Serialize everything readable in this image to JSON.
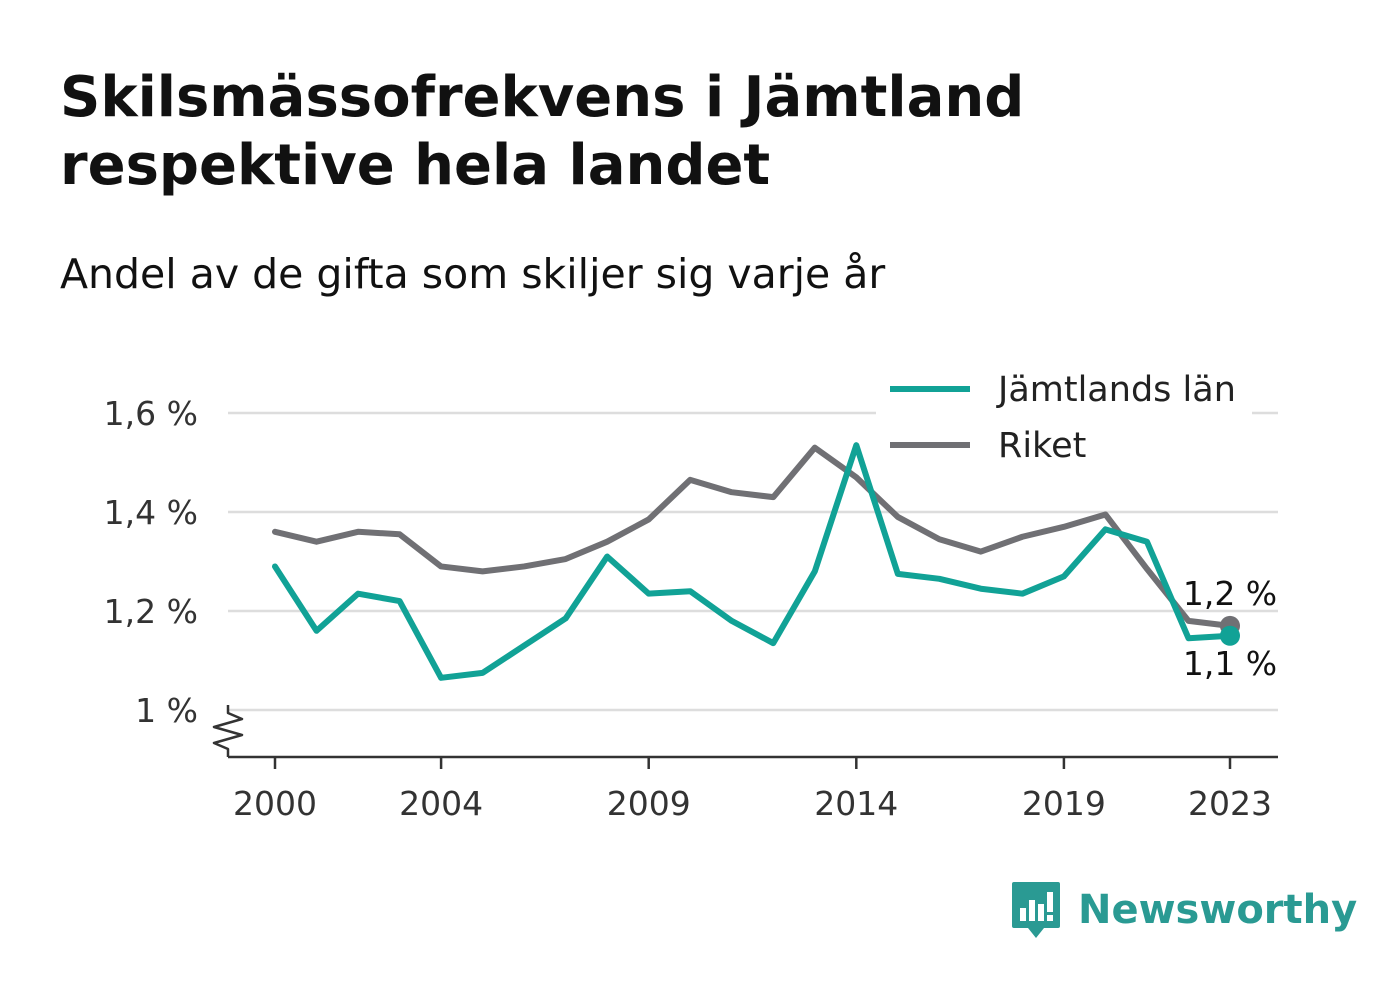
{
  "title_line1": "Skilsmässofrekvens i Jämtland",
  "title_line2": "respektive hela landet",
  "subtitle": "Andel av de gifta som skiljer sig varje år",
  "brand": "Newsworthy",
  "colors": {
    "jamtland": "#11a296",
    "riket": "#707074",
    "grid": "#dddddd",
    "axis": "#333333",
    "brand": "#2a9a93"
  },
  "chart_data": {
    "type": "line",
    "x": [
      2000,
      2001,
      2002,
      2003,
      2004,
      2005,
      2006,
      2007,
      2008,
      2009,
      2010,
      2011,
      2012,
      2013,
      2014,
      2015,
      2016,
      2017,
      2018,
      2019,
      2020,
      2021,
      2022,
      2023
    ],
    "series": [
      {
        "name": "Jämtlands län",
        "color": "#11a296",
        "values": [
          1.29,
          1.16,
          1.235,
          1.22,
          1.065,
          1.075,
          1.13,
          1.185,
          1.31,
          1.235,
          1.24,
          1.18,
          1.135,
          1.28,
          1.535,
          1.275,
          1.265,
          1.245,
          1.235,
          1.27,
          1.365,
          1.34,
          1.145,
          1.15
        ],
        "end_label": "1,1 %"
      },
      {
        "name": "Riket",
        "color": "#707074",
        "values": [
          1.36,
          1.34,
          1.36,
          1.355,
          1.29,
          1.28,
          1.29,
          1.305,
          1.34,
          1.385,
          1.465,
          1.44,
          1.43,
          1.53,
          1.47,
          1.39,
          1.345,
          1.32,
          1.35,
          1.37,
          1.395,
          1.285,
          1.18,
          1.17
        ],
        "end_label": "1,2 %"
      }
    ],
    "x_ticks": [
      2000,
      2004,
      2009,
      2014,
      2019,
      2023
    ],
    "x_tick_labels": [
      "2000",
      "2004",
      "2009",
      "2014",
      "2019",
      "2023"
    ],
    "y_ticks": [
      1.0,
      1.2,
      1.4,
      1.6
    ],
    "y_tick_labels": [
      "1 %",
      "1,2 %",
      "1,4 %",
      "1,6 %"
    ],
    "ylim": [
      0.9,
      1.6
    ],
    "xlim": [
      2000,
      2023
    ],
    "grid": true,
    "legend_position": "top-right",
    "title": "Skilsmässofrekvens i Jämtland respektive hela landet",
    "subtitle": "Andel av de gifta som skiljer sig varje år"
  }
}
